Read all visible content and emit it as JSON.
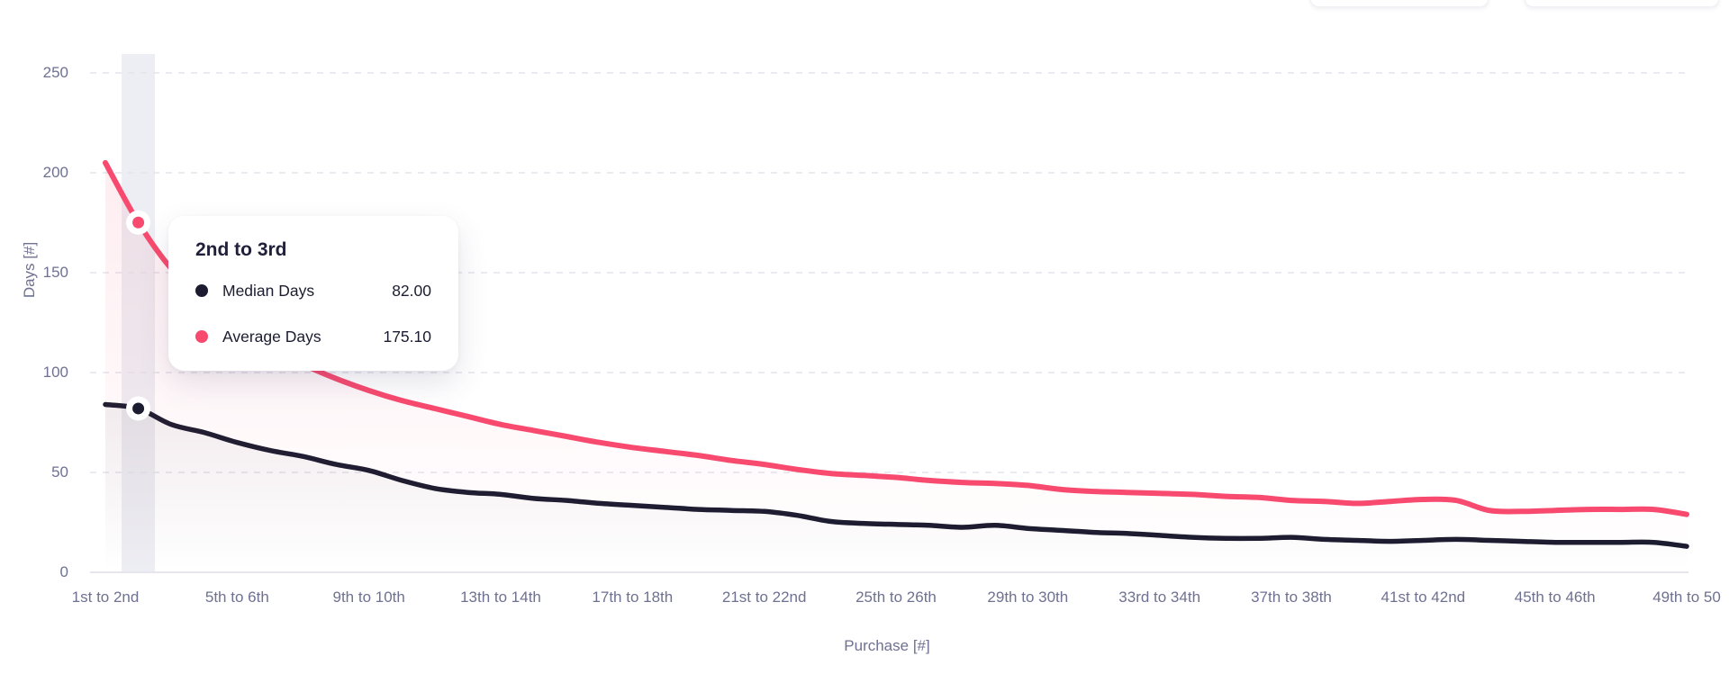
{
  "top_right_partial_buttons": [
    {
      "name": "partial-button-left"
    },
    {
      "name": "partial-button-right"
    }
  ],
  "chart_data": {
    "type": "line",
    "title": "",
    "xlabel": "Purchase [#]",
    "ylabel": "Days [#]",
    "ylim": [
      0,
      250
    ],
    "yticks": [
      0,
      50,
      100,
      150,
      200,
      250
    ],
    "grid": "horizontal-dashed",
    "x_count": 49,
    "x_tick_labels": [
      {
        "index": 1,
        "label": "1st to 2nd"
      },
      {
        "index": 5,
        "label": "5th to 6th"
      },
      {
        "index": 9,
        "label": "9th to 10th"
      },
      {
        "index": 13,
        "label": "13th to 14th"
      },
      {
        "index": 17,
        "label": "17th to 18th"
      },
      {
        "index": 21,
        "label": "21st to 22nd"
      },
      {
        "index": 25,
        "label": "25th to 26th"
      },
      {
        "index": 29,
        "label": "29th to 30th"
      },
      {
        "index": 33,
        "label": "33rd to 34th"
      },
      {
        "index": 37,
        "label": "37th to 38th"
      },
      {
        "index": 41,
        "label": "41st to 42nd"
      },
      {
        "index": 45,
        "label": "45th to 46th"
      },
      {
        "index": 49,
        "label": "49th to 50"
      }
    ],
    "series": [
      {
        "name": "Median Days",
        "color": "#1B1C30",
        "values": [
          84,
          82,
          74,
          70,
          65,
          61,
          58,
          54,
          51,
          46,
          42,
          40,
          39,
          37,
          36,
          34.5,
          33.5,
          32.5,
          31.5,
          31,
          30.5,
          28.5,
          25.5,
          24.5,
          24,
          23.5,
          22.5,
          23.5,
          22,
          21,
          20,
          19.5,
          18.5,
          17.5,
          17,
          17,
          17.5,
          16.5,
          16,
          15.5,
          16,
          16.5,
          16,
          15.5,
          15,
          15,
          15,
          15,
          13
        ]
      },
      {
        "name": "Average Days",
        "color": "#F84A6E",
        "values": [
          205,
          175.1,
          152,
          136,
          123,
          112,
          104,
          97,
          91,
          86,
          82,
          78,
          74,
          71,
          68,
          65,
          62.5,
          60.5,
          58.5,
          56,
          54,
          51.5,
          49.5,
          48.5,
          47.5,
          46,
          45,
          44.5,
          43.5,
          41.5,
          40.5,
          40,
          39.5,
          39,
          38,
          37.5,
          36,
          35.5,
          34.5,
          35.5,
          36.5,
          36,
          31,
          30.5,
          31,
          31.5,
          31.5,
          31.5,
          29
        ]
      }
    ],
    "highlight": {
      "index": 2,
      "category": "2nd to 3rd"
    },
    "tooltip": {
      "title": "2nd to 3rd",
      "rows": [
        {
          "label": "Median Days",
          "value": "82.00",
          "dot_color": "#1B1C30"
        },
        {
          "label": "Average Days",
          "value": "175.10",
          "dot_color": "#F84A6E"
        }
      ]
    },
    "style": {
      "tick_text_color": "#6E7191",
      "gridline_color": "#E4E4EB",
      "baseline_color": "#E6E6EC",
      "highlight_band_color": "#EDEEF3",
      "background": "#FFFFFF"
    }
  }
}
